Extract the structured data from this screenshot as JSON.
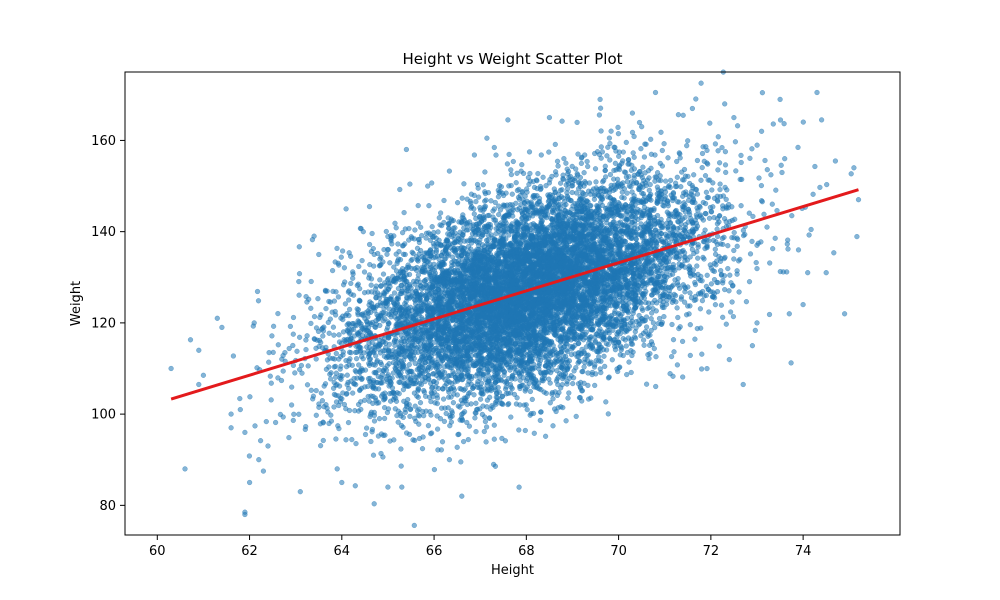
{
  "chart_data": {
    "type": "scatter",
    "title": "Height vs Weight Scatter Plot",
    "xlabel": "Height",
    "ylabel": "Weight",
    "xlim": [
      59.3,
      76.1
    ],
    "ylim": [
      73.5,
      175.0
    ],
    "x_ticks": [
      60,
      62,
      64,
      66,
      68,
      70,
      72,
      74
    ],
    "y_ticks": [
      80,
      100,
      120,
      140,
      160
    ],
    "grid": false,
    "legend": "none",
    "colors": {
      "points": "#1f77b4",
      "fit_line": "#e31a1c"
    },
    "series": [
      {
        "type": "scatter",
        "approx_point_count": 10000,
        "x_mean": 68.0,
        "x_std": 1.9,
        "y_mean": 127.0,
        "y_std": 12.0,
        "correlation": 0.5,
        "point_opacity": 0.55,
        "outlier_points": [
          [
            60.3,
            110.0
          ],
          [
            60.6,
            88.0
          ],
          [
            60.9,
            114.0
          ],
          [
            61.0,
            108.5
          ],
          [
            60.9,
            106.5
          ],
          [
            61.3,
            121.0
          ],
          [
            61.4,
            119.0
          ],
          [
            61.6,
            100.0
          ],
          [
            61.6,
            97.0
          ],
          [
            61.8,
            101.0
          ],
          [
            61.9,
            96.0
          ],
          [
            61.9,
            78.5
          ],
          [
            61.9,
            78.0
          ],
          [
            62.0,
            85.0
          ],
          [
            62.1,
            120.0
          ],
          [
            62.2,
            90.0
          ],
          [
            62.3,
            87.5
          ],
          [
            62.4,
            93.0
          ],
          [
            63.1,
            83.0
          ],
          [
            63.4,
            139.0
          ],
          [
            63.5,
            135.0
          ],
          [
            63.9,
            88.0
          ],
          [
            64.0,
            85.0
          ],
          [
            64.6,
            145.5
          ],
          [
            65.0,
            84.0
          ],
          [
            65.3,
            84.0
          ],
          [
            65.4,
            158.0
          ],
          [
            66.6,
            82.0
          ],
          [
            67.6,
            164.5
          ],
          [
            68.5,
            165.0
          ],
          [
            69.6,
            169.0
          ],
          [
            70.3,
            166.0
          ],
          [
            70.5,
            163.0
          ],
          [
            70.8,
            170.5
          ],
          [
            71.4,
            165.5
          ],
          [
            71.6,
            167.0
          ],
          [
            72.3,
            168.0
          ],
          [
            72.5,
            165.0
          ],
          [
            72.7,
            106.5
          ],
          [
            72.9,
            115.0
          ],
          [
            73.0,
            120.0
          ],
          [
            73.1,
            162.0
          ],
          [
            73.5,
            169.0
          ],
          [
            73.6,
            156.0
          ],
          [
            73.7,
            122.0
          ],
          [
            73.9,
            136.0
          ],
          [
            74.0,
            124.0
          ],
          [
            74.1,
            131.0
          ],
          [
            74.3,
            170.5
          ],
          [
            74.4,
            164.5
          ],
          [
            74.5,
            131.0
          ],
          [
            74.7,
            155.5
          ],
          [
            74.9,
            122.0
          ],
          [
            75.1,
            154.0
          ],
          [
            75.2,
            147.0
          ]
        ]
      },
      {
        "type": "line",
        "x": [
          60.3,
          75.2
        ],
        "y": [
          103.3,
          149.2
        ]
      }
    ]
  }
}
